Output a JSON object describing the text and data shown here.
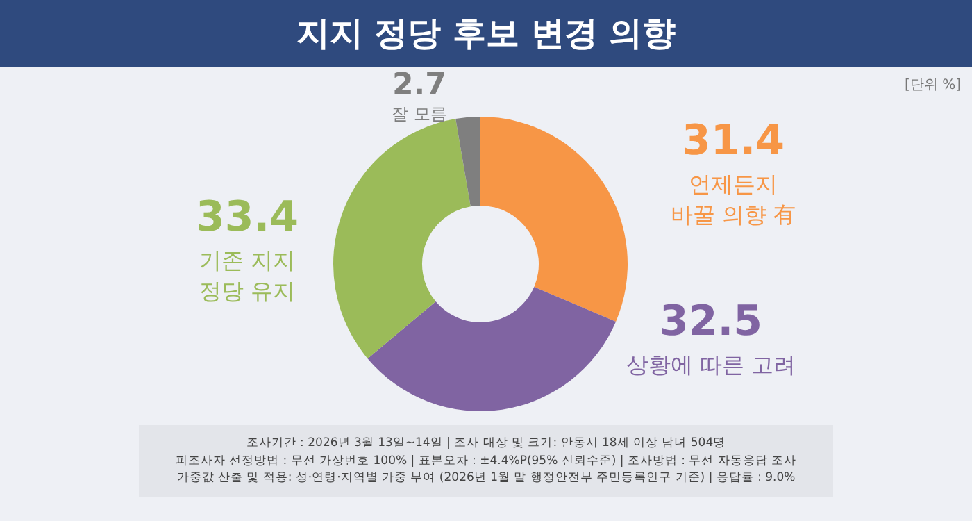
{
  "chart_data": {
    "type": "donut",
    "title": "지지 정당 후보 변경 의향",
    "categories": [
      "언제든지 바꿀 의향 有",
      "상황에 따른 고려",
      "기존 지지 정당 유지",
      "잘 모름"
    ],
    "values": [
      31.4,
      32.5,
      33.4,
      2.7
    ],
    "colors": [
      "#f79646",
      "#8064a2",
      "#9bbb59",
      "#7f7f7f"
    ],
    "data_labels": true,
    "legend": false,
    "annotations": [
      "[단위 %]",
      "조사기간 : 2026년 3월 13일~14일 | 조사 대상 및 크기: 안동시 18세 이상 남녀 504명",
      "피조사자 선정방법 : 무선 가상번호 100% | 표본오차 : ±4.4%P(95% 신뢰수준) | 조사방법 : 무선 자동응답 조사",
      "가중값 산출 및 적용: 성·연령·지역별 가중 부여 (2026년 1월 말 행정안전부 주민등록인구 기준) | 응답률 : 9.0%"
    ]
  }
}
